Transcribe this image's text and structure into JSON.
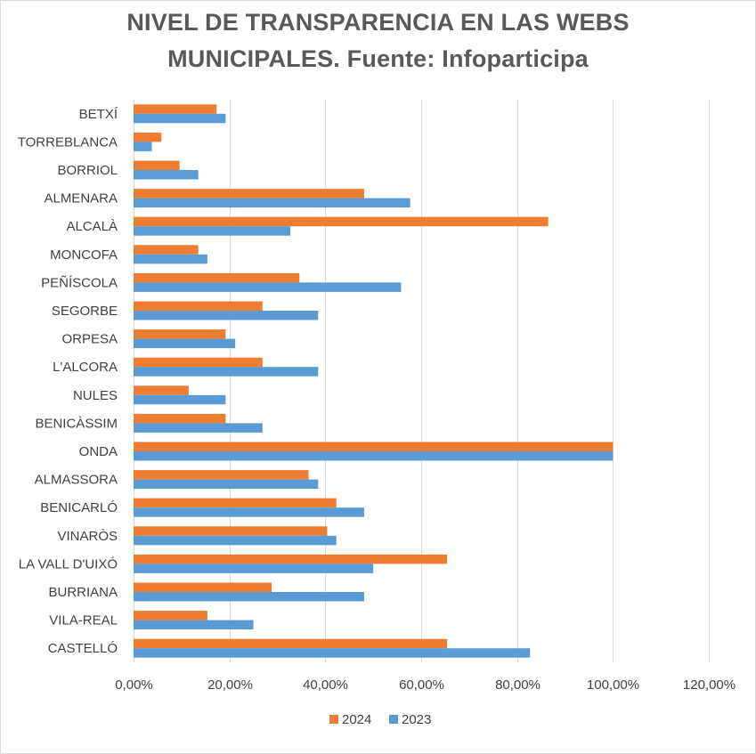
{
  "chart_data": {
    "type": "bar",
    "orientation": "horizontal",
    "title_line1": "NIVEL DE TRANSPARENCIA EN LAS WEBS",
    "title_line2": "MUNICIPALES. Fuente: Infoparticipa",
    "categories": [
      "BETXÍ",
      "TORREBLANCA",
      "BORRIOL",
      "ALMENARA",
      "ALCALÀ",
      "MONCOFA",
      "PEÑÍSCOLA",
      "SEGORBE",
      "ORPESA",
      "L'ALCORA",
      "NULES",
      "BENICÀSSIM",
      "ONDA",
      "ALMASSORA",
      "BENICARLÓ",
      "VINARÒS",
      "LA VALL D'UIXÓ",
      "BURRIANA",
      "VILA-REAL",
      "CASTELLÓ"
    ],
    "series": [
      {
        "name": "2024",
        "color": "#ED7D31",
        "values": [
          17.3,
          5.8,
          9.6,
          48.1,
          86.5,
          13.5,
          34.6,
          26.9,
          19.2,
          26.9,
          11.5,
          19.2,
          100,
          36.5,
          42.3,
          40.4,
          65.4,
          28.8,
          15.4,
          65.4
        ]
      },
      {
        "name": "2023",
        "color": "#5B9BD5",
        "values": [
          19.2,
          3.8,
          13.5,
          57.7,
          32.7,
          15.4,
          55.8,
          38.5,
          21.2,
          38.5,
          19.2,
          26.9,
          100,
          38.5,
          48.1,
          42.3,
          50.0,
          48.1,
          25.0,
          82.7
        ]
      }
    ],
    "xlim": [
      0,
      120
    ],
    "xticks": [
      "0,00%",
      "20,00%",
      "40,00%",
      "60,00%",
      "80,00%",
      "100,00%",
      "120,00%"
    ],
    "grid": "vertical",
    "legend_position": "bottom"
  }
}
